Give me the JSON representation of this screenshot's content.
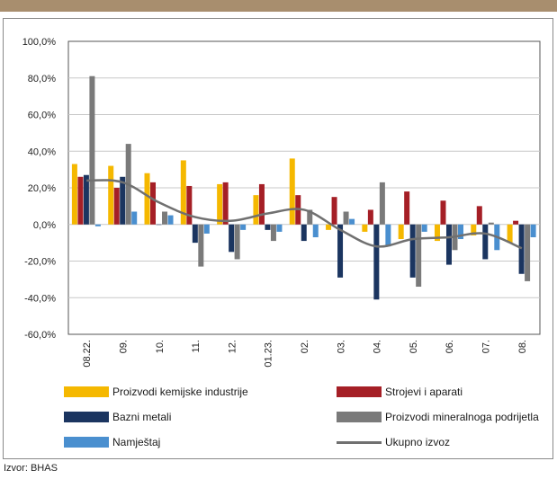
{
  "source": "Izvor: BHAS",
  "chart_data": {
    "type": "bar",
    "categories": [
      "08.22.",
      "09.",
      "10.",
      "11.",
      "12.",
      "01.23.",
      "02.",
      "03.",
      "04.",
      "05.",
      "06.",
      "07.",
      "08."
    ],
    "ylim": [
      -60,
      100
    ],
    "yticks": [
      "100,0%",
      "80,0%",
      "60,0%",
      "40,0%",
      "20,0%",
      "0,0%",
      "-20,0%",
      "-40,0%",
      "-60,0%"
    ],
    "grid": true,
    "legend_position": "bottom",
    "series": [
      {
        "name": "Proizvodi kemijske industrije",
        "color": "#f5b800",
        "values": [
          33,
          32,
          28,
          35,
          22,
          16,
          36,
          -3,
          -4,
          -8,
          -9,
          -6,
          -10
        ]
      },
      {
        "name": "Strojevi i aparati",
        "color": "#a51f26",
        "values": [
          26,
          20,
          23,
          21,
          23,
          22,
          16,
          15,
          8,
          18,
          13,
          10,
          2
        ]
      },
      {
        "name": "Bazni metali",
        "color": "#1b3560",
        "values": [
          27,
          26,
          0,
          -10,
          -15,
          -3,
          -9,
          -29,
          -41,
          -29,
          -22,
          -19,
          -27
        ]
      },
      {
        "name": "Proizvodi mineralnoga podrijetla",
        "color": "#7a7a7a",
        "values": [
          81,
          44,
          7,
          -23,
          -19,
          -9,
          8,
          7,
          23,
          -34,
          -14,
          1,
          -31
        ]
      },
      {
        "name": "Namještaj",
        "color": "#4a8fcf",
        "values": [
          -1,
          7,
          5,
          -5,
          -3,
          -4,
          -7,
          3,
          -12,
          -4,
          -8,
          -14,
          -7
        ]
      },
      {
        "name": "Ukupno izvoz",
        "color": "#707070",
        "type": "line",
        "values": [
          24,
          23,
          12,
          4,
          2,
          6,
          8,
          -3,
          -12,
          -8,
          -7,
          -5,
          -13
        ]
      }
    ]
  }
}
